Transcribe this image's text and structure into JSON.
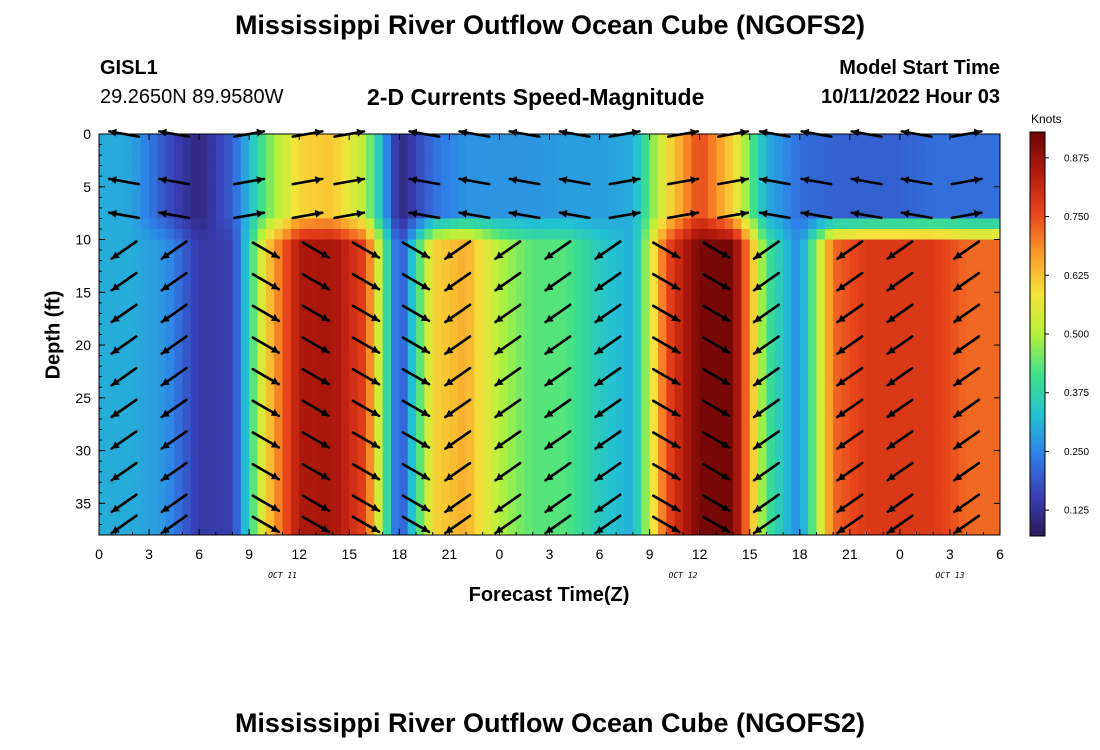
{
  "header": {
    "title": "Mississippi River Outflow Ocean Cube (NGOFS2)",
    "station_id": "GISL1",
    "coordinates": "29.2650N  89.9580W",
    "subtitle": "2-D Currents Speed-Magnitude",
    "model_start_label": "Model Start Time",
    "model_start_value": "10/11/2022 Hour 03"
  },
  "footer": {
    "title": "Mississippi River Outflow Ocean Cube (NGOFS2)"
  },
  "colors": {
    "colormap": [
      "#2b1a5a",
      "#3a3fb5",
      "#2f7fe8",
      "#23c2d2",
      "#3fe08a",
      "#b6f23a",
      "#f5e23a",
      "#fb9a29",
      "#e8431c",
      "#b31a0d",
      "#6e0606"
    ]
  },
  "chart_data": {
    "type": "heatmap",
    "xlabel": "Forecast Time(Z)",
    "ylabel": "Depth (ft)",
    "colorbar_label": "Knots",
    "colorbar_ticks": [
      0.125,
      0.25,
      0.375,
      0.5,
      0.625,
      0.75,
      0.875
    ],
    "colorbar_range": [
      0.07,
      0.93
    ],
    "x_range_hours": [
      0,
      54
    ],
    "x_tick_labels": [
      "0",
      "3",
      "6",
      "9",
      "12",
      "15",
      "18",
      "21",
      "0",
      "3",
      "6",
      "9",
      "12",
      "15",
      "18",
      "21",
      "0",
      "3",
      "6"
    ],
    "date_labels": [
      {
        "label": "OCT 11",
        "hour": 11
      },
      {
        "label": "OCT 12",
        "hour": 35
      },
      {
        "label": "OCT 13",
        "hour": 51
      }
    ],
    "y_range_ft": [
      0,
      38
    ],
    "y_ticks": [
      0,
      5,
      10,
      15,
      20,
      25,
      30,
      35
    ],
    "surface_layer_max_depth_ft": 9,
    "speed_profile_by_hour": {
      "hours": [
        0,
        2,
        4,
        6,
        8,
        10,
        12,
        14,
        16,
        18,
        20,
        22,
        24,
        26,
        28,
        30,
        32,
        34,
        36,
        38,
        40,
        42,
        44,
        46,
        48,
        50,
        52,
        54
      ],
      "surface_layer_knots": [
        0.3,
        0.29,
        0.18,
        0.1,
        0.2,
        0.44,
        0.6,
        0.62,
        0.5,
        0.1,
        0.22,
        0.27,
        0.27,
        0.27,
        0.28,
        0.28,
        0.3,
        0.58,
        0.76,
        0.6,
        0.3,
        0.22,
        0.2,
        0.2,
        0.2,
        0.22,
        0.22,
        0.22
      ],
      "deep_layer_knots": [
        0.3,
        0.3,
        0.27,
        0.14,
        0.15,
        0.6,
        0.85,
        0.86,
        0.76,
        0.16,
        0.6,
        0.65,
        0.5,
        0.43,
        0.43,
        0.35,
        0.3,
        0.75,
        0.92,
        0.92,
        0.42,
        0.25,
        0.72,
        0.78,
        0.78,
        0.78,
        0.72,
        0.72
      ]
    },
    "vectors": {
      "surface_depths_ft": [
        0,
        4.5,
        7.7
      ],
      "surface_hours": [
        1.5,
        4.5,
        9,
        12.5,
        15,
        19.5,
        22.5,
        25.5,
        28.5,
        31.5,
        35,
        38,
        40.5,
        43,
        46,
        49,
        52
      ],
      "surface_dirs": [
        -1,
        -1,
        1,
        1,
        1,
        -1,
        -1,
        -1,
        -1,
        1,
        1,
        1,
        -1,
        -1,
        -1,
        -1,
        1
      ],
      "deep_depths_ft": [
        11,
        14,
        17,
        20,
        23,
        26,
        29,
        32,
        35,
        37
      ],
      "deep_hours": [
        1.5,
        4.5,
        10,
        13,
        16,
        19,
        21.5,
        24.5,
        27.5,
        30.5,
        34,
        37,
        40,
        45,
        48,
        52
      ],
      "deep_dirs": [
        -1,
        -1,
        1,
        1,
        1,
        1,
        -1,
        -1,
        -1,
        -1,
        1,
        1,
        -1,
        -1,
        -1,
        -1
      ]
    }
  }
}
